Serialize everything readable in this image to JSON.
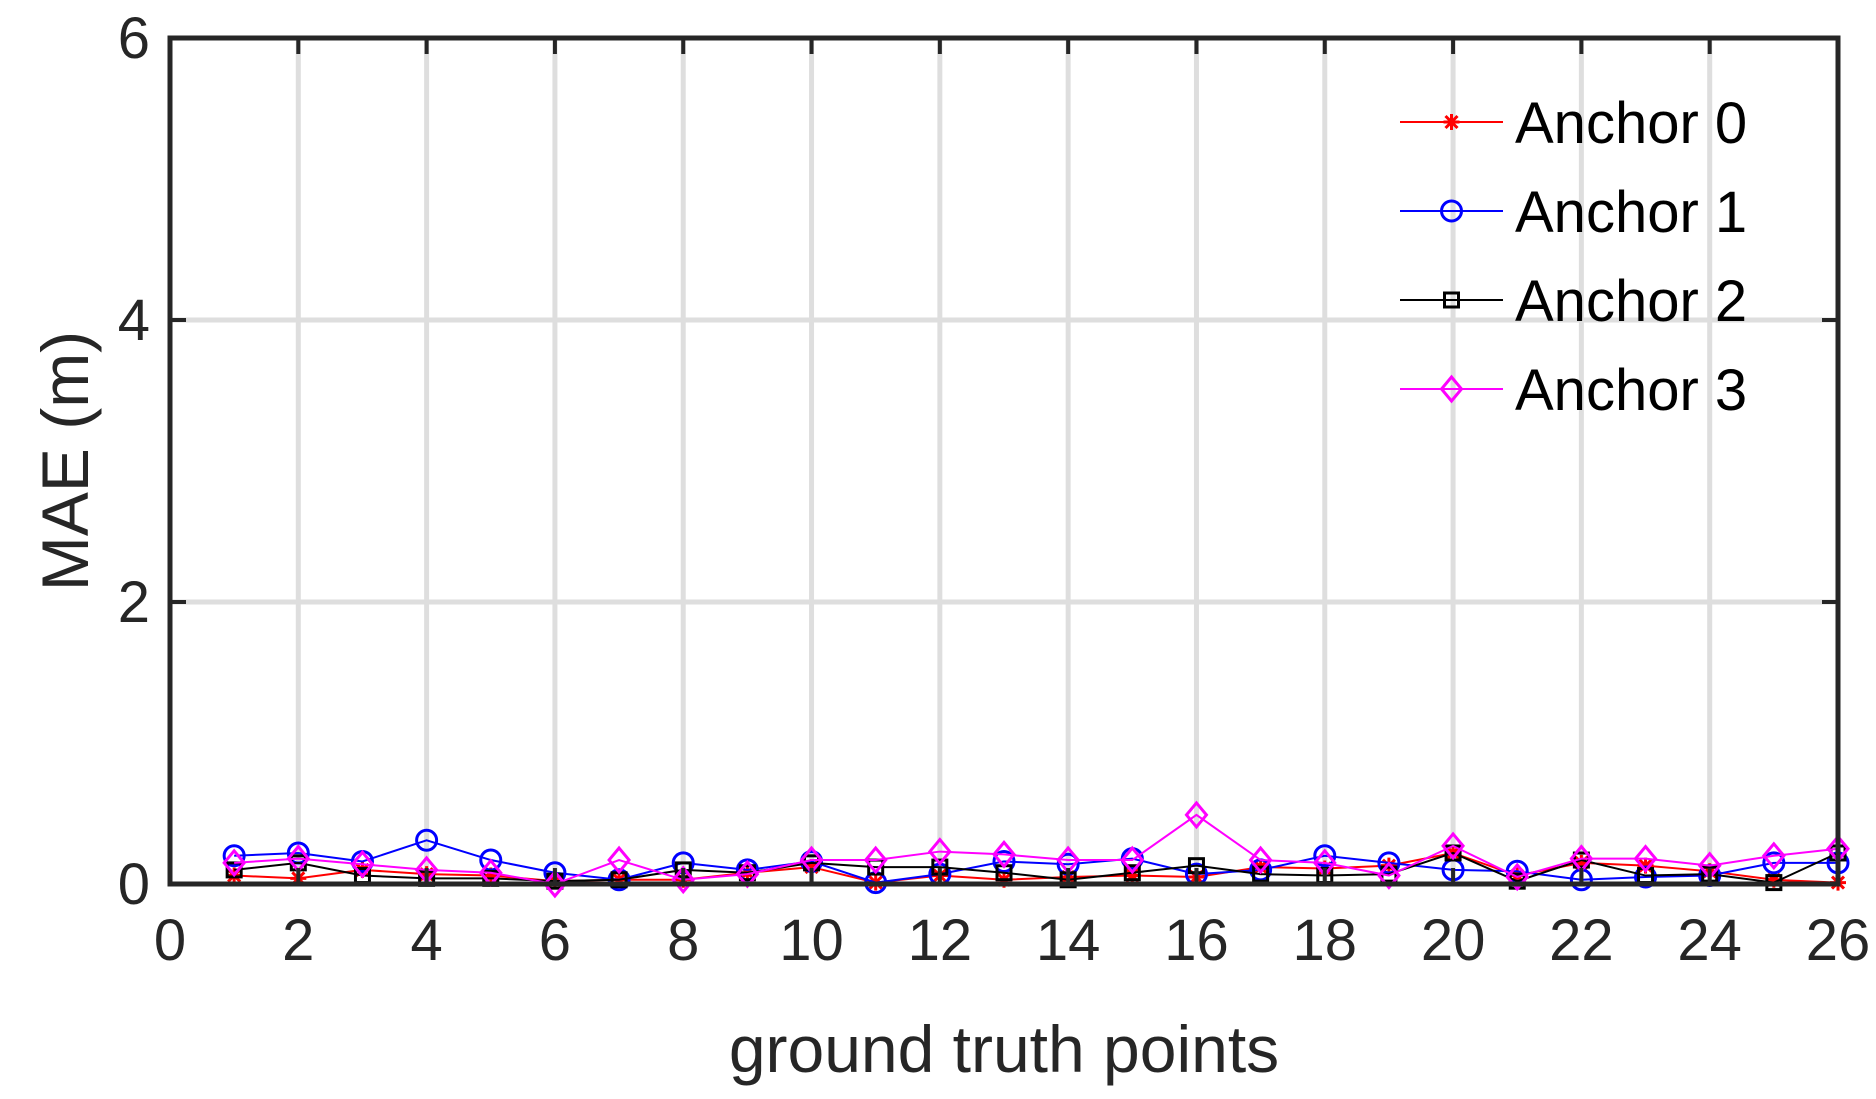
{
  "chart_data": {
    "type": "line",
    "title": "",
    "xlabel": "ground truth points",
    "ylabel": "MAE (m)",
    "xlim": [
      0,
      26
    ],
    "ylim": [
      0,
      6
    ],
    "xticks": [
      0,
      2,
      4,
      6,
      8,
      10,
      12,
      14,
      16,
      18,
      20,
      22,
      24,
      26
    ],
    "yticks": [
      0,
      2,
      4,
      6
    ],
    "grid": true,
    "legend_position": "top-right",
    "x": [
      1,
      2,
      3,
      4,
      5,
      6,
      7,
      8,
      9,
      10,
      11,
      12,
      13,
      14,
      15,
      16,
      17,
      18,
      19,
      20,
      21,
      22,
      23,
      24,
      25,
      26
    ],
    "series": [
      {
        "name": "Anchor 0",
        "color": "#ff0000",
        "marker": "asterisk",
        "values": [
          0.06,
          0.04,
          0.1,
          0.07,
          0.06,
          0.02,
          0.03,
          0.03,
          0.08,
          0.12,
          0.01,
          0.06,
          0.03,
          0.05,
          0.06,
          0.05,
          0.12,
          0.11,
          0.13,
          0.22,
          0.06,
          0.15,
          0.13,
          0.09,
          0.03,
          0.01
        ]
      },
      {
        "name": "Anchor 1",
        "color": "#0000ff",
        "marker": "circle",
        "values": [
          0.2,
          0.22,
          0.16,
          0.31,
          0.17,
          0.08,
          0.03,
          0.15,
          0.1,
          0.16,
          0.01,
          0.07,
          0.16,
          0.14,
          0.18,
          0.07,
          0.1,
          0.2,
          0.15,
          0.1,
          0.09,
          0.03,
          0.05,
          0.06,
          0.15,
          0.15
        ]
      },
      {
        "name": "Anchor 2",
        "color": "#000000",
        "marker": "square",
        "values": [
          0.1,
          0.15,
          0.06,
          0.04,
          0.04,
          0.02,
          0.03,
          0.1,
          0.08,
          0.15,
          0.12,
          0.12,
          0.08,
          0.03,
          0.08,
          0.13,
          0.07,
          0.06,
          0.07,
          0.22,
          0.02,
          0.17,
          0.06,
          0.07,
          0.01,
          0.22
        ]
      },
      {
        "name": "Anchor 3",
        "color": "#ff00ff",
        "marker": "diamond",
        "values": [
          0.15,
          0.18,
          0.14,
          0.1,
          0.08,
          0.0,
          0.17,
          0.03,
          0.07,
          0.17,
          0.17,
          0.23,
          0.21,
          0.17,
          0.17,
          0.49,
          0.17,
          0.15,
          0.06,
          0.27,
          0.05,
          0.18,
          0.18,
          0.13,
          0.2,
          0.25
        ]
      }
    ]
  }
}
